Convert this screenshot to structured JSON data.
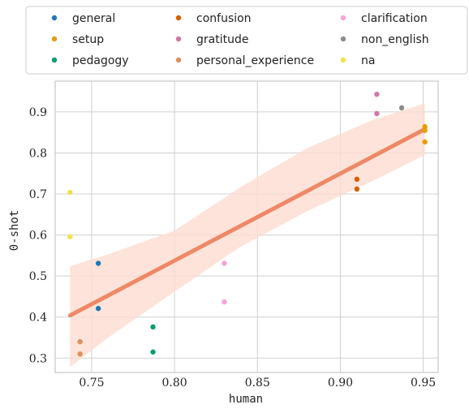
{
  "chart_data": {
    "type": "scatter",
    "xlabel": "human",
    "ylabel": "0-shot",
    "xlim": [
      0.728,
      0.959
    ],
    "ylim": [
      0.265,
      0.975
    ],
    "xticks": [
      0.75,
      0.8,
      0.85,
      0.9,
      0.95
    ],
    "xtick_labels": [
      "0.75",
      "0.80",
      "0.85",
      "0.90",
      "0.95"
    ],
    "yticks": [
      0.3,
      0.4,
      0.5,
      0.6,
      0.7,
      0.8,
      0.9
    ],
    "ytick_labels": [
      "0.3",
      "0.4",
      "0.5",
      "0.6",
      "0.7",
      "0.8",
      "0.9"
    ],
    "grid": true,
    "legend_position": "top",
    "series": [
      {
        "name": "general",
        "color": "#1f77b4",
        "points": [
          [
            0.754,
            0.531
          ],
          [
            0.754,
            0.421
          ]
        ]
      },
      {
        "name": "setup",
        "color": "#e69f00",
        "points": [
          [
            0.951,
            0.864
          ],
          [
            0.951,
            0.855
          ],
          [
            0.951,
            0.827
          ]
        ]
      },
      {
        "name": "pedagogy",
        "color": "#009e73",
        "points": [
          [
            0.787,
            0.376
          ],
          [
            0.787,
            0.315
          ]
        ]
      },
      {
        "name": "confusion",
        "color": "#d55e00",
        "points": [
          [
            0.91,
            0.736
          ],
          [
            0.91,
            0.712
          ]
        ]
      },
      {
        "name": "gratitude",
        "color": "#cc79a7",
        "points": [
          [
            0.922,
            0.943
          ],
          [
            0.922,
            0.896
          ]
        ]
      },
      {
        "name": "personal_experience",
        "color": "#de8f5f",
        "points": [
          [
            0.743,
            0.34
          ],
          [
            0.743,
            0.31
          ]
        ]
      },
      {
        "name": "clarification",
        "color": "#f5a3d6",
        "points": [
          [
            0.83,
            0.531
          ],
          [
            0.83,
            0.437
          ]
        ]
      },
      {
        "name": "non_english",
        "color": "#8c8c8c",
        "points": [
          [
            0.937,
            0.91
          ]
        ]
      },
      {
        "name": "na",
        "color": "#f0e442",
        "points": [
          [
            0.737,
            0.704
          ],
          [
            0.737,
            0.596
          ]
        ]
      }
    ],
    "regression": {
      "color": "#ee8866",
      "band_color": "#fcdccf",
      "x": [
        0.737,
        0.951
      ],
      "y": [
        0.404,
        0.858
      ],
      "ci_x": [
        0.737,
        0.76,
        0.8,
        0.84,
        0.88,
        0.92,
        0.951
      ],
      "ci_low": [
        0.278,
        0.35,
        0.462,
        0.572,
        0.658,
        0.733,
        0.795
      ],
      "ci_high": [
        0.524,
        0.553,
        0.611,
        0.717,
        0.812,
        0.881,
        0.921
      ]
    }
  }
}
